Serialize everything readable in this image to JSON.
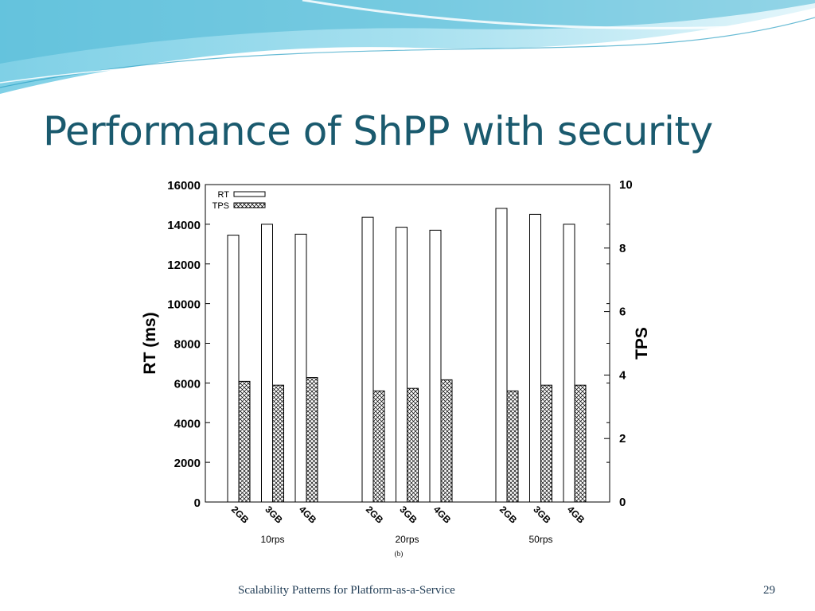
{
  "slide": {
    "title": "Performance of ShPP with security",
    "footer": "Scalability Patterns for Platform-as-a-Service",
    "page_number": "29"
  },
  "colors": {
    "title": "#1a5a6e",
    "wave_dark": "#4fb8d6",
    "wave_light": "#c8ecf5",
    "bar_stroke": "#000000"
  },
  "chart_data": {
    "type": "bar",
    "title": "",
    "caption": "(b)",
    "ylabel": "RT (ms)",
    "y2label": "TPS",
    "ylim": [
      0,
      16000
    ],
    "y2lim": [
      0,
      10
    ],
    "yticks": [
      "0",
      "2000",
      "4000",
      "6000",
      "8000",
      "10000",
      "12000",
      "14000",
      "16000"
    ],
    "y2ticks": [
      "0",
      "2",
      "4",
      "6",
      "8",
      "10"
    ],
    "legend_position": "top-left",
    "grid": false,
    "groups": [
      "10rps",
      "20rps",
      "50rps"
    ],
    "categories": [
      "2GB",
      "3GB",
      "4GB"
    ],
    "series": [
      {
        "name": "RT",
        "axis": "left",
        "pattern": "empty",
        "values": [
          [
            13450,
            14000,
            13500
          ],
          [
            14350,
            13850,
            13700
          ],
          [
            14800,
            14500,
            14000
          ]
        ]
      },
      {
        "name": "TPS",
        "axis": "right",
        "pattern": "crosshatch",
        "values": [
          [
            3.8,
            3.68,
            3.92
          ],
          [
            3.5,
            3.58,
            3.85
          ],
          [
            3.5,
            3.68,
            3.68
          ]
        ]
      }
    ]
  }
}
